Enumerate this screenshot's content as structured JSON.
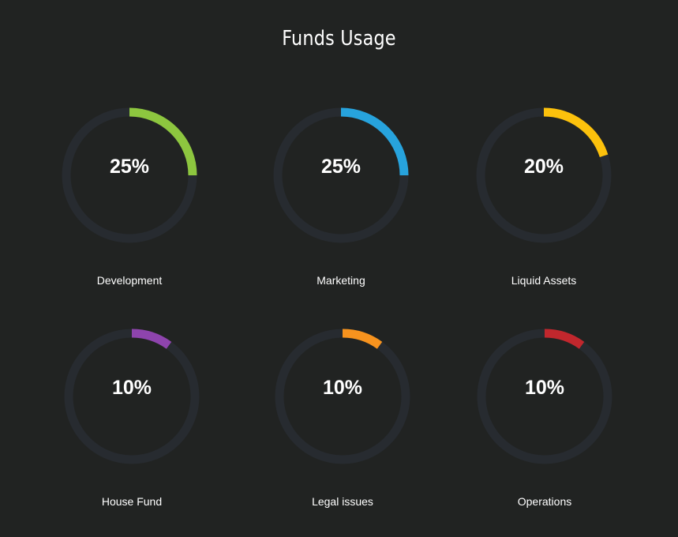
{
  "chart_data": {
    "type": "pie",
    "title": "Funds Usage",
    "track_color": "#272b30",
    "background": "#212322",
    "items": [
      {
        "label": "Development",
        "value": 25,
        "display": "25%",
        "color": "#8dc63f"
      },
      {
        "label": "Marketing",
        "value": 25,
        "display": "25%",
        "color": "#27a3dd"
      },
      {
        "label": "Liquid Assets",
        "value": 20,
        "display": "20%",
        "color": "#fcc10c"
      },
      {
        "label": "House Fund",
        "value": 10,
        "display": "10%",
        "color": "#8e44ad"
      },
      {
        "label": "Legal issues",
        "value": 10,
        "display": "10%",
        "color": "#f7931e"
      },
      {
        "label": "Operations",
        "value": 10,
        "display": "10%",
        "color": "#c1272d"
      }
    ]
  }
}
